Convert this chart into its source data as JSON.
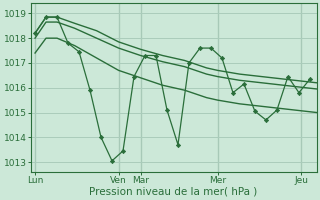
{
  "bg_color": "#cce8d8",
  "grid_color": "#aaccbb",
  "line_color": "#2a6e3a",
  "marker_color": "#2a6e3a",
  "xlabel": "Pression niveau de la mer( hPa )",
  "xlabel_fontsize": 7.5,
  "tick_fontsize": 6.5,
  "ylim": [
    1012.6,
    1019.4
  ],
  "yticks": [
    1013,
    1014,
    1015,
    1016,
    1017,
    1018,
    1019
  ],
  "xlim": [
    0,
    13.0
  ],
  "x_day_positions": [
    0.2,
    4.0,
    5.0,
    8.5,
    12.3
  ],
  "x_day_labels": [
    "Lun",
    "Ven",
    "Mar",
    "Mer",
    "Jeu"
  ],
  "x_vlines": [
    0.2,
    4.0,
    5.0,
    8.5,
    12.3
  ],
  "band_x": [
    0.2,
    0.7,
    1.2,
    2.0,
    3.0,
    4.0,
    5.0,
    6.0,
    7.0,
    8.0,
    8.5,
    9.5,
    10.5,
    11.5,
    12.5,
    13.0
  ],
  "band_upper": [
    1018.2,
    1018.85,
    1018.85,
    1018.6,
    1018.3,
    1017.85,
    1017.55,
    1017.3,
    1017.1,
    1016.8,
    1016.7,
    1016.55,
    1016.45,
    1016.35,
    1016.25,
    1016.2
  ],
  "band_mid": [
    1018.0,
    1018.65,
    1018.65,
    1018.4,
    1018.0,
    1017.6,
    1017.3,
    1017.05,
    1016.85,
    1016.55,
    1016.45,
    1016.3,
    1016.2,
    1016.1,
    1016.0,
    1015.95
  ],
  "band_lower": [
    1017.4,
    1018.0,
    1018.0,
    1017.7,
    1017.2,
    1016.7,
    1016.4,
    1016.1,
    1015.9,
    1015.6,
    1015.5,
    1015.35,
    1015.25,
    1015.15,
    1015.05,
    1015.0
  ],
  "zigzag_x": [
    0.2,
    0.7,
    1.2,
    1.7,
    2.2,
    2.7,
    3.2,
    3.7,
    4.2,
    4.7,
    5.2,
    5.7,
    6.2,
    6.7,
    7.2,
    7.7,
    8.2,
    8.7,
    9.2,
    9.7,
    10.2,
    10.7,
    11.2,
    11.7,
    12.2,
    12.7
  ],
  "zigzag_y": [
    1018.2,
    1018.85,
    1018.85,
    1017.8,
    1017.45,
    1015.9,
    1014.0,
    1013.05,
    1013.45,
    1016.45,
    1017.3,
    1017.3,
    1015.1,
    1013.7,
    1017.0,
    1017.6,
    1017.6,
    1017.2,
    1015.8,
    1016.15,
    1015.05,
    1014.7,
    1015.1,
    1016.45,
    1015.8,
    1016.35
  ]
}
